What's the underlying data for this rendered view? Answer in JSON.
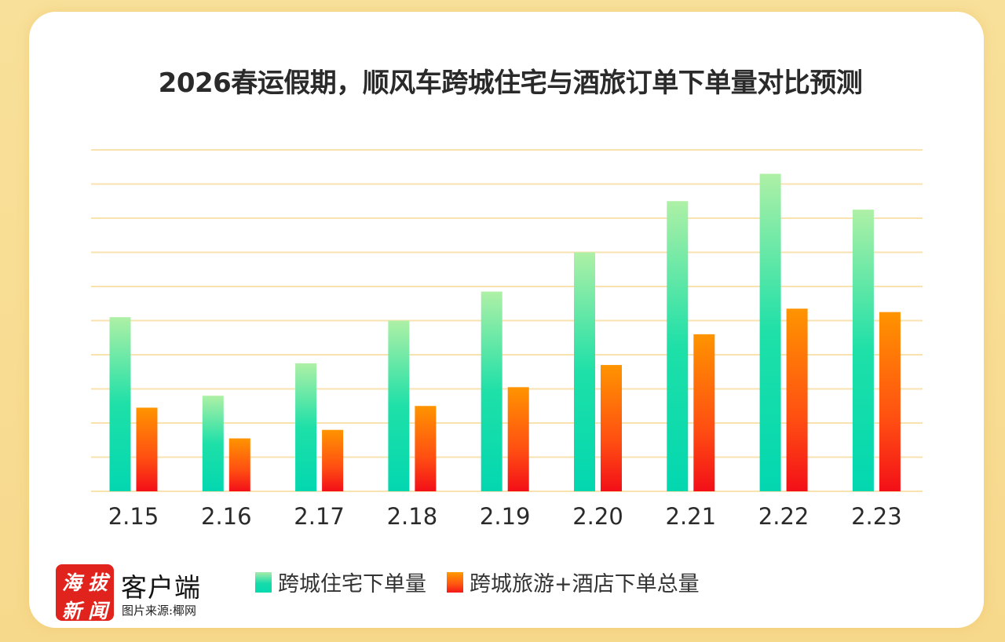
{
  "title": "2026春运假期，顺风车跨城住宅与酒旅订单下单量对比预测",
  "branding": {
    "logo_chars": [
      "海",
      "拔",
      "新",
      "闻"
    ],
    "app_label": "客户端",
    "source": "图片来源:椰网"
  },
  "colors": {
    "background": "#f7dc8f",
    "grid": "#f8e3b0",
    "residential_top": "#a8ecaa",
    "residential_bottom": "#05d9b0",
    "travel_top": "#ff9a00",
    "travel_bottom": "#f41818",
    "logo_red": "#e0231c"
  },
  "chart_data": {
    "type": "bar",
    "title": "2026春运假期，顺风车跨城住宅与酒旅订单下单量对比预测",
    "xlabel": "",
    "ylabel": "",
    "y_unit": "gridline units (no y-axis labels shown)",
    "ylim": [
      0,
      10
    ],
    "grid": true,
    "legend_position": "bottom",
    "categories": [
      "2.15",
      "2.16",
      "2.17",
      "2.18",
      "2.19",
      "2.20",
      "2.21",
      "2.22",
      "2.23"
    ],
    "series": [
      {
        "name": "跨城住宅下单量",
        "values": [
          5.1,
          2.8,
          3.75,
          5.0,
          5.85,
          7.0,
          8.5,
          9.3,
          8.25
        ]
      },
      {
        "name": "跨城旅游+酒店下单总量",
        "values": [
          2.45,
          1.55,
          1.8,
          2.5,
          3.05,
          3.7,
          4.6,
          5.35,
          5.25
        ]
      }
    ]
  }
}
